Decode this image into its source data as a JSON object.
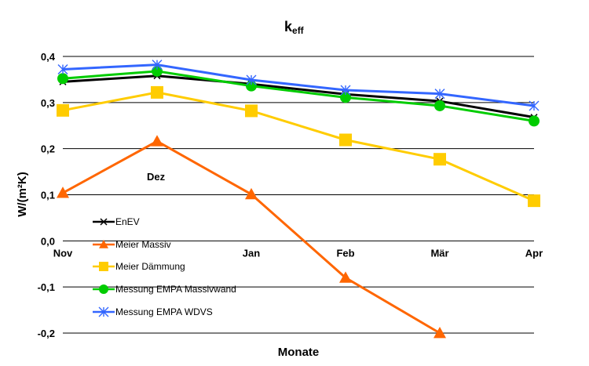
{
  "chart_data": {
    "type": "line",
    "title_main": "k",
    "title_sub": "eff",
    "xlabel": "Monate",
    "ylabel": "W/(m²K)",
    "categories": [
      "Nov",
      "Dez",
      "Jan",
      "Feb",
      "Mär",
      "Apr"
    ],
    "category_labels_shown": [
      "Nov",
      "",
      "Jan",
      "Feb",
      "Mär",
      "Apr"
    ],
    "annotation": "Dez",
    "ylim": [
      -0.2,
      0.4
    ],
    "yticks": [
      "0,4",
      "0,3",
      "0,2",
      "0,1",
      "0,0",
      "-0,1",
      "-0,2"
    ],
    "ytick_values": [
      0.4,
      0.3,
      0.2,
      0.1,
      0.0,
      -0.1,
      -0.2
    ],
    "grid": true,
    "legend_position": "left-bottom",
    "series": [
      {
        "name": "EnEV",
        "color": "#000000",
        "marker": "x",
        "values": [
          0.345,
          0.358,
          0.34,
          0.318,
          0.303,
          0.268
        ]
      },
      {
        "name": "Meier Massiv",
        "color": "#ff6600",
        "marker": "triangle",
        "values": [
          0.104,
          0.216,
          0.101,
          -0.08,
          -0.2,
          null
        ]
      },
      {
        "name": "Meier Dämmung",
        "color": "#ffcc00",
        "marker": "square",
        "values": [
          0.283,
          0.322,
          0.282,
          0.219,
          0.177,
          0.087
        ]
      },
      {
        "name": "Messung EMPA Massivwand",
        "color": "#00cc00",
        "marker": "circle",
        "values": [
          0.352,
          0.368,
          0.336,
          0.311,
          0.293,
          0.26
        ]
      },
      {
        "name": "Messung EMPA WDVS",
        "color": "#3366ff",
        "marker": "star",
        "values": [
          0.372,
          0.382,
          0.349,
          0.327,
          0.319,
          0.293
        ]
      }
    ]
  }
}
